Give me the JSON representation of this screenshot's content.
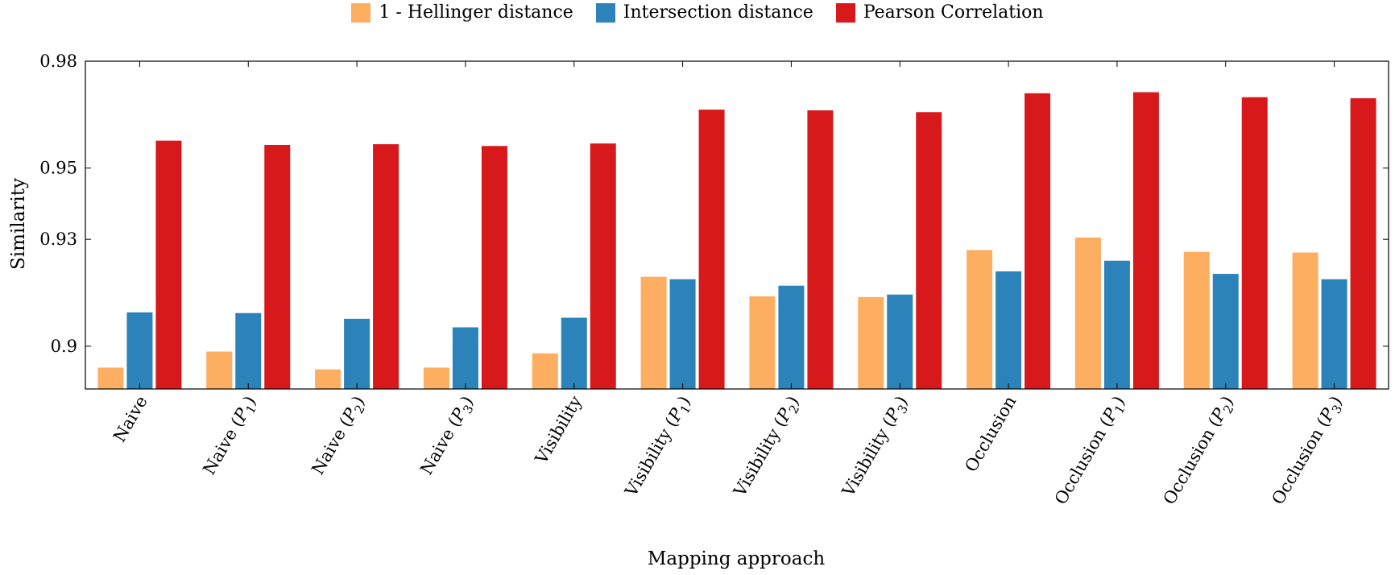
{
  "chart_data": {
    "type": "bar",
    "title": "",
    "xlabel": "Mapping approach",
    "ylabel": "Similarity",
    "ylim": [
      0.888,
      0.98
    ],
    "yticks": [
      0.9,
      0.93,
      0.95,
      0.98
    ],
    "ytick_labels": [
      "0.9",
      "0.93",
      "0.95",
      "0.98"
    ],
    "grid": false,
    "legend_position": "top-center",
    "categories": [
      "Naive",
      "Naive (P1)",
      "Naive (P2)",
      "Naive (P3)",
      "Visibility",
      "Visibility (P1)",
      "Visibility (P2)",
      "Visibility (P3)",
      "Occlusion",
      "Occlusion (P1)",
      "Occlusion (P2)",
      "Occlusion (P3)"
    ],
    "category_labels": [
      {
        "base": "Naive",
        "sub": ""
      },
      {
        "base": "Naive",
        "sub": "1"
      },
      {
        "base": "Naive",
        "sub": "2"
      },
      {
        "base": "Naive",
        "sub": "3"
      },
      {
        "base": "Visibility",
        "sub": ""
      },
      {
        "base": "Visibility",
        "sub": "1"
      },
      {
        "base": "Visibility",
        "sub": "2"
      },
      {
        "base": "Visibility",
        "sub": "3"
      },
      {
        "base": "Occlusion",
        "sub": ""
      },
      {
        "base": "Occlusion",
        "sub": "1"
      },
      {
        "base": "Occlusion",
        "sub": "2"
      },
      {
        "base": "Occlusion",
        "sub": "3"
      }
    ],
    "series": [
      {
        "name": "1 - Hellinger distance",
        "color": "#fdae61",
        "values": [
          0.894,
          0.8985,
          0.8935,
          0.894,
          0.898,
          0.9195,
          0.914,
          0.9138,
          0.927,
          0.9305,
          0.9265,
          0.9263
        ]
      },
      {
        "name": "Intersection distance",
        "color": "#2b83ba",
        "values": [
          0.9095,
          0.9093,
          0.9077,
          0.9053,
          0.908,
          0.9188,
          0.917,
          0.9145,
          0.921,
          0.924,
          0.9203,
          0.9188
        ]
      },
      {
        "name": "Pearson Correlation",
        "color": "#d7191c",
        "values": [
          0.9577,
          0.9565,
          0.9567,
          0.9562,
          0.9569,
          0.9664,
          0.9662,
          0.9657,
          0.971,
          0.9713,
          0.9699,
          0.9696
        ]
      }
    ]
  }
}
